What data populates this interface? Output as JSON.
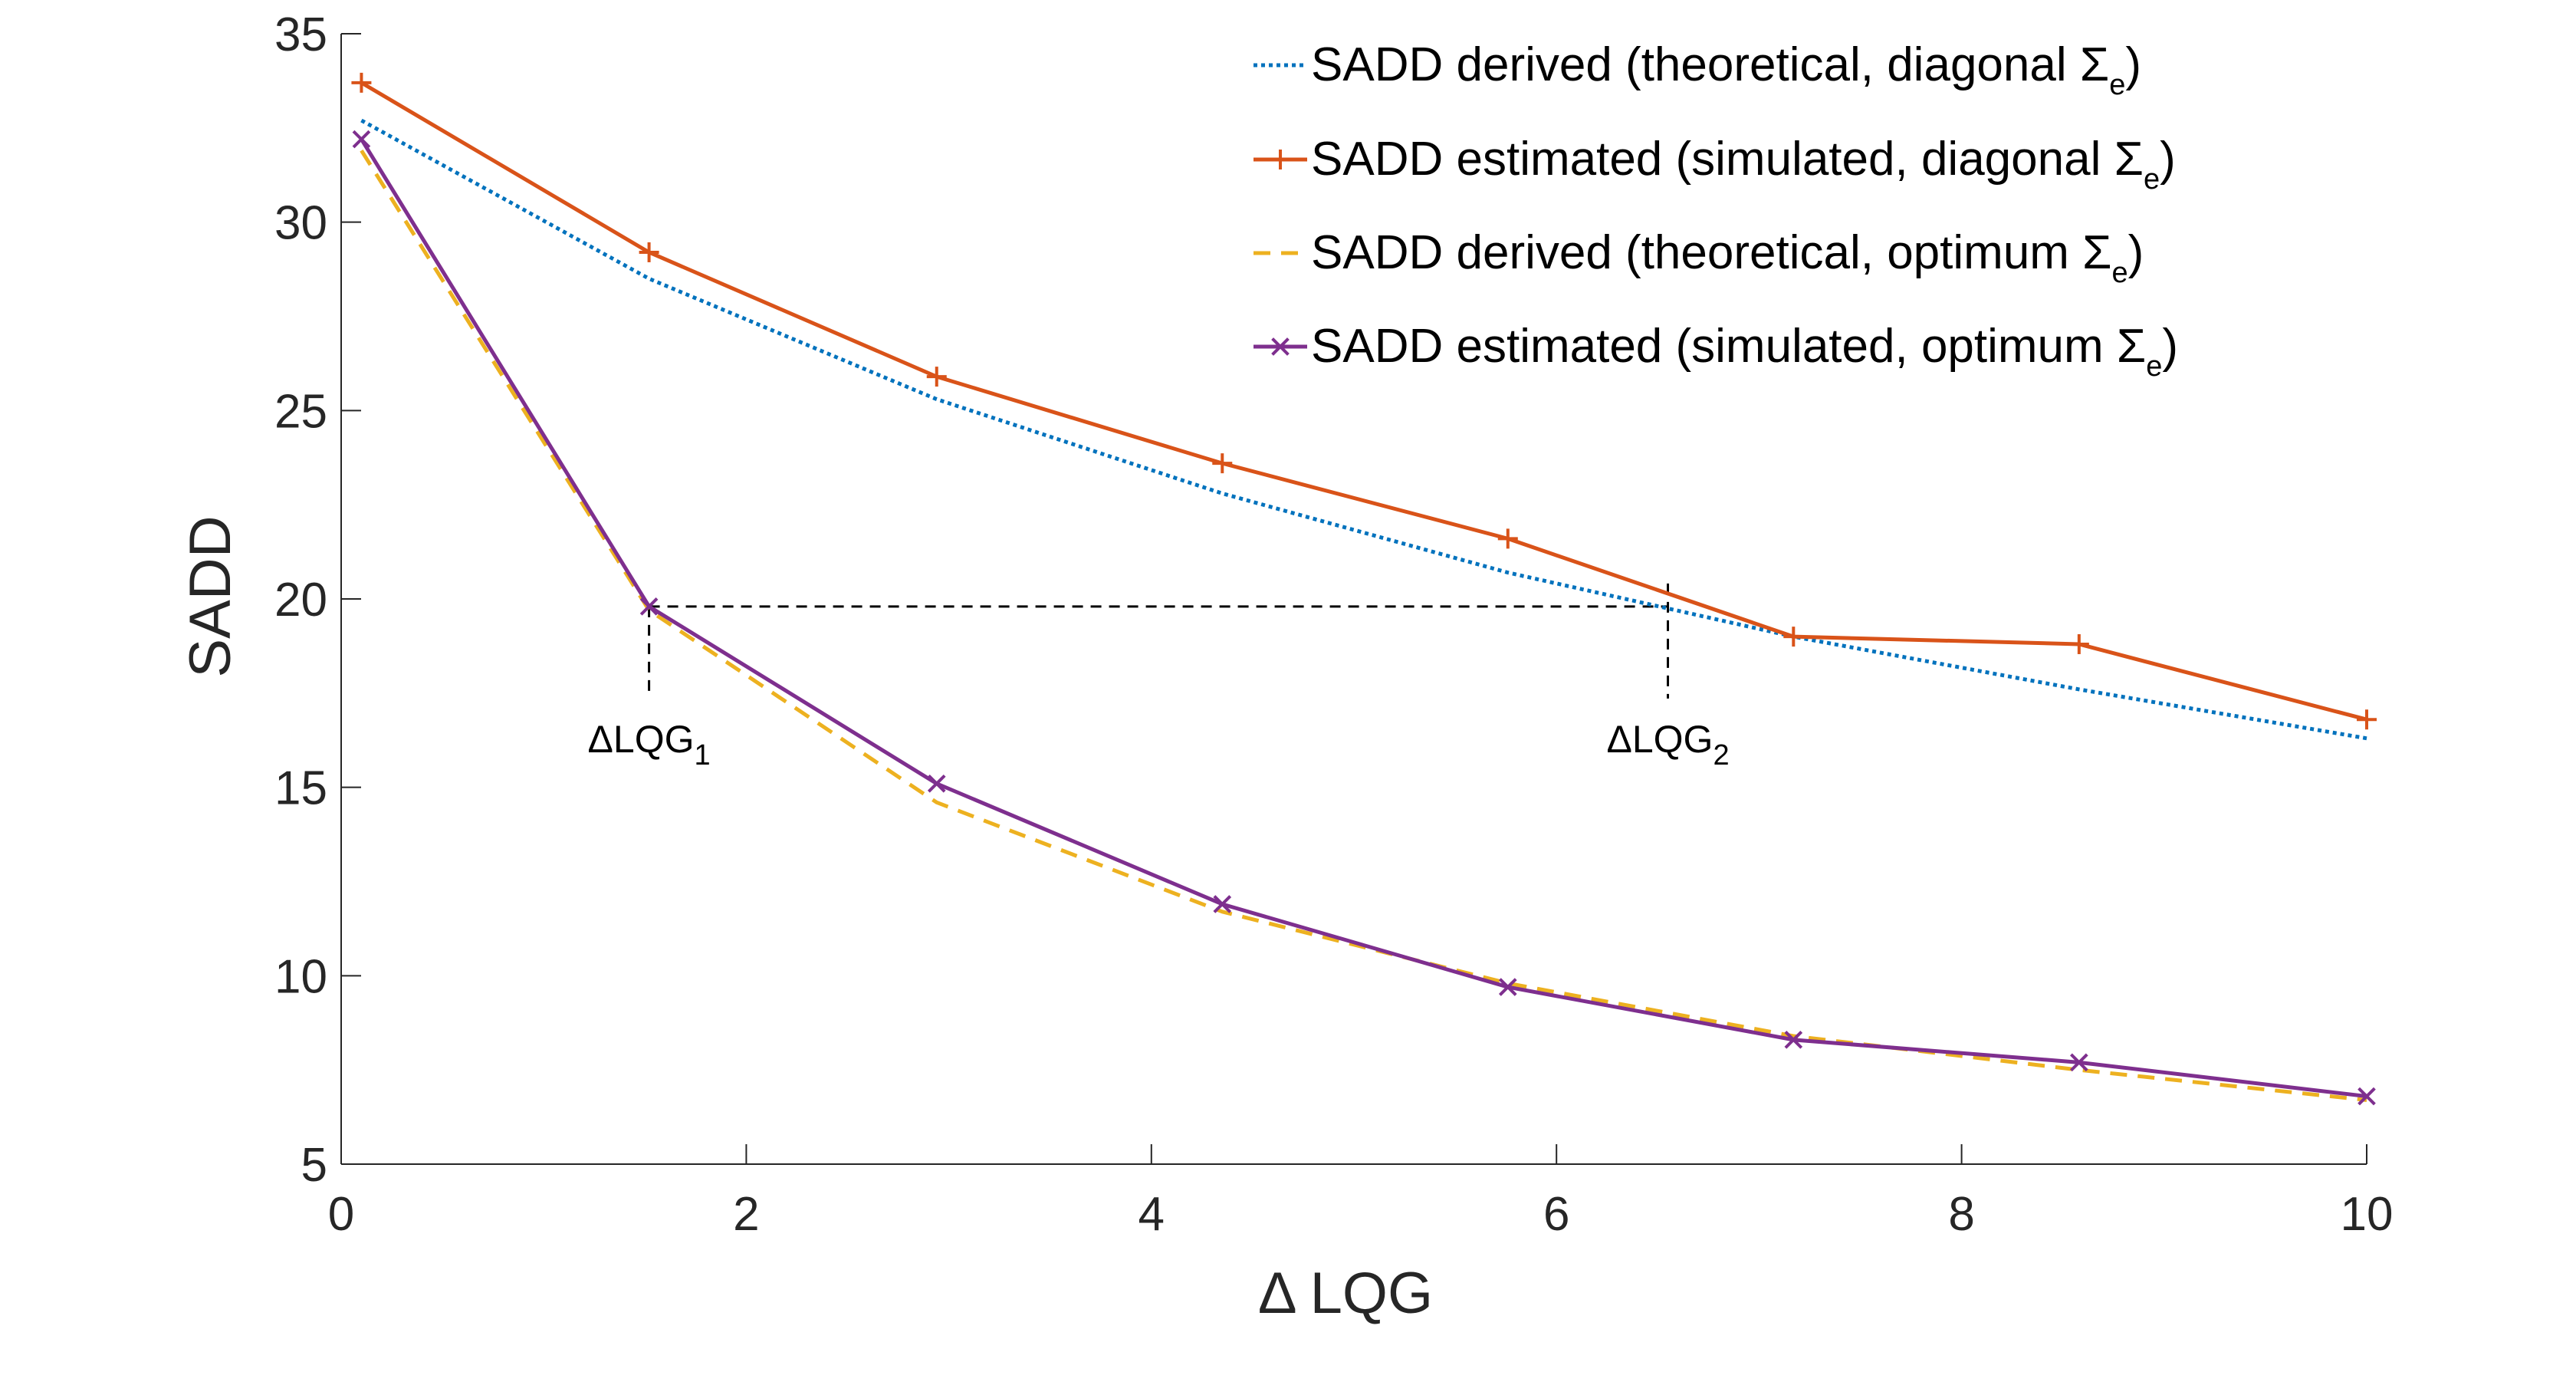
{
  "chart_data": {
    "type": "line",
    "xlabel": "Δ LQG",
    "ylabel": "SADD",
    "xlim": [
      0,
      10
    ],
    "ylim": [
      5,
      35
    ],
    "x_ticks": [
      "0",
      "2",
      "4",
      "6",
      "8",
      "10"
    ],
    "y_ticks": [
      "5",
      "10",
      "15",
      "20",
      "25",
      "30",
      "35"
    ],
    "grid": false,
    "legend_position": "top-right",
    "x": [
      0.1,
      1.52,
      2.94,
      4.35,
      5.76,
      7.17,
      8.58,
      10.0
    ],
    "series": [
      {
        "name": "SADD derived (theoretical, diagonal Σ",
        "sub": "e",
        "close": ")",
        "style": "dotted",
        "marker": "none",
        "color": "#0072BD",
        "values": [
          32.7,
          28.5,
          25.3,
          22.8,
          20.7,
          19.0,
          17.6,
          16.3
        ]
      },
      {
        "name": "SADD estimated (simulated, diagonal Σ",
        "sub": "e",
        "close": ")",
        "style": "solid",
        "marker": "plus",
        "color": "#D95319",
        "values": [
          33.7,
          29.2,
          25.9,
          23.6,
          21.6,
          19.0,
          18.8,
          16.8
        ]
      },
      {
        "name": "SADD derived (theoretical, optimum Σ",
        "sub": "e",
        "close": ")",
        "style": "dashed",
        "marker": "none",
        "color": "#EDB120",
        "values": [
          31.9,
          19.7,
          14.6,
          11.7,
          9.8,
          8.4,
          7.5,
          6.7
        ]
      },
      {
        "name": "SADD estimated (simulated, optimum Σ",
        "sub": "e",
        "close": ")",
        "style": "solid",
        "marker": "x",
        "color": "#7E2F8E",
        "values": [
          32.2,
          19.8,
          15.1,
          11.9,
          9.7,
          8.3,
          7.7,
          6.8
        ]
      }
    ],
    "annotations": [
      {
        "label": "ΔLQG",
        "sub": "1",
        "x": 1.52,
        "y": 19.8
      },
      {
        "label": "ΔLQG",
        "sub": "2",
        "x": 6.55,
        "y": 19.8
      }
    ]
  }
}
